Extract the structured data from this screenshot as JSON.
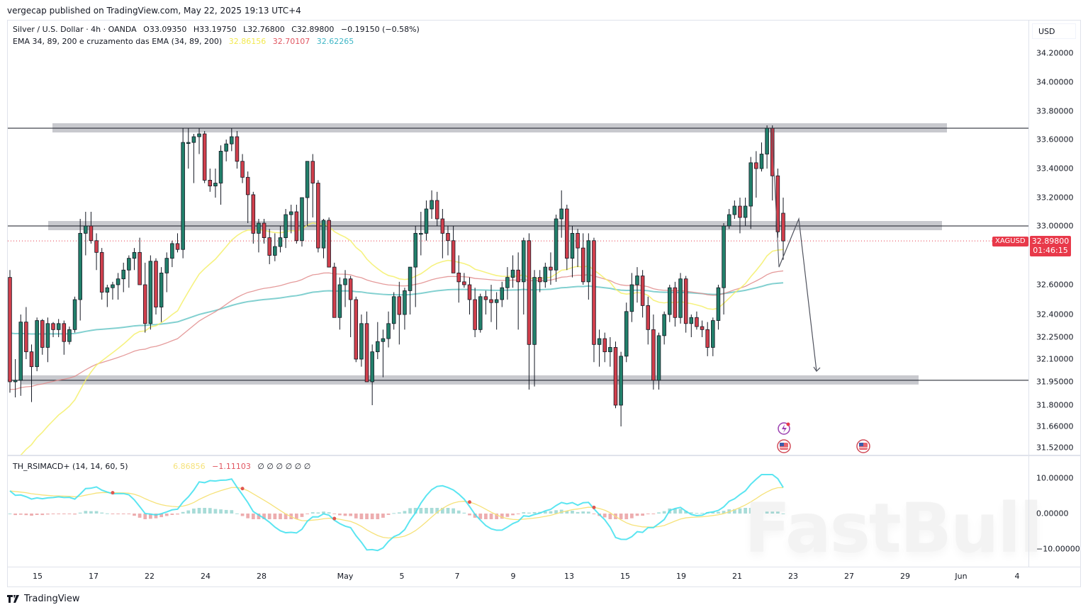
{
  "publisher": "vergecap published on TradingView.com, May 22, 2025 19:13 UTC+4",
  "header": {
    "symbol_line": {
      "name": "Silver / U.S. Dollar · 4h · OANDA",
      "open": "O33.09350",
      "high": "H33.19750",
      "low": "L32.76800",
      "close": "C32.89800",
      "change": "−0.19150 (−0.58%)"
    },
    "ema_line": {
      "name": "EMA 34, 89, 200 e cruzamento das EMA (34, 89, 200)",
      "ema34": "32.86156",
      "ema89": "32.70107",
      "ema200": "32.62265"
    }
  },
  "indicator": {
    "name": "TH_RSIMACD+ (14, 14, 60, 5)",
    "value1": "6.86856",
    "value2": "−1.11103",
    "empties": "∅ ∅ ∅ ∅ ∅ ∅",
    "axis_ticks": [
      "10.00000",
      "0.00000",
      "−10.00000"
    ]
  },
  "price_axis": {
    "currency": "USD",
    "ticks": [
      "34.20000",
      "34.00000",
      "33.80000",
      "33.60000",
      "33.40000",
      "33.20000",
      "33.00000",
      "32.60000",
      "32.40000",
      "32.25000",
      "32.10000",
      "31.95000",
      "31.80000",
      "31.66000",
      "31.52000"
    ],
    "last_price": "32.89800",
    "countdown": "01:46:15",
    "symbol_badge": "XAGUSD"
  },
  "time_axis": {
    "ticks": [
      "15",
      "17",
      "22",
      "24",
      "28",
      "May",
      "5",
      "7",
      "9",
      "13",
      "15",
      "19",
      "21",
      "23",
      "27",
      "29",
      "Jun",
      "4"
    ]
  },
  "footer": {
    "brand": "TradingView"
  },
  "watermark": "FastBull",
  "colors": {
    "up": "#22806b",
    "down": "#d13f4c",
    "ema34": "#f5f06a",
    "ema89": "#e08a8a",
    "ema200": "#6cc8c8",
    "band": "#c8c9ce",
    "badge": "#e8394a",
    "rsi_line": "#3ee0ee",
    "signal_line": "#f6e27a"
  },
  "chart_data": {
    "type": "candlestick",
    "title": "Silver / U.S. Dollar · 4h · OANDA",
    "xlabel": "",
    "ylabel": "USD",
    "ylim": [
      31.45,
      34.3
    ],
    "grid": false,
    "horizontal_levels": [
      {
        "label": "resistance",
        "price": 33.68
      },
      {
        "label": "mid",
        "price": 33.0
      },
      {
        "label": "support",
        "price": 31.96
      }
    ],
    "projection_path": [
      {
        "date": "May 22",
        "price": 32.72
      },
      {
        "date": "May 23",
        "price": 33.05
      },
      {
        "date": "May 26",
        "price": 32.02
      }
    ],
    "series": [
      {
        "name": "EMA 34",
        "last": 32.86156
      },
      {
        "name": "EMA 89",
        "last": 32.70107
      },
      {
        "name": "EMA 200",
        "last": 32.62265
      }
    ],
    "ohlc_approx": [
      [
        32.65,
        32.7,
        31.88,
        31.95
      ],
      [
        31.95,
        32.1,
        31.85,
        31.96
      ],
      [
        31.96,
        32.4,
        31.86,
        32.35
      ],
      [
        32.35,
        32.45,
        32.1,
        32.15
      ],
      [
        32.15,
        32.2,
        31.82,
        32.05
      ],
      [
        32.05,
        32.38,
        32.02,
        32.36
      ],
      [
        32.36,
        32.37,
        32.13,
        32.18
      ],
      [
        32.18,
        32.38,
        32.08,
        32.34
      ],
      [
        32.34,
        32.35,
        32.25,
        32.3
      ],
      [
        32.3,
        32.37,
        32.25,
        32.34
      ],
      [
        32.34,
        32.36,
        32.13,
        32.22
      ],
      [
        32.22,
        32.32,
        32.2,
        32.3
      ],
      [
        32.3,
        32.52,
        32.28,
        32.5
      ],
      [
        32.5,
        33.05,
        32.36,
        32.95
      ],
      [
        32.95,
        33.1,
        32.8,
        33.0
      ],
      [
        33.0,
        33.1,
        32.88,
        32.9
      ],
      [
        32.9,
        32.95,
        32.7,
        32.82
      ],
      [
        32.82,
        32.85,
        32.5,
        32.55
      ],
      [
        32.55,
        32.6,
        32.45,
        32.58
      ],
      [
        32.58,
        32.62,
        32.5,
        32.6
      ],
      [
        32.6,
        32.68,
        32.5,
        32.64
      ],
      [
        32.64,
        32.75,
        32.55,
        32.7
      ],
      [
        32.7,
        32.8,
        32.58,
        32.78
      ],
      [
        32.78,
        32.85,
        32.7,
        32.82
      ],
      [
        32.82,
        32.92,
        32.65,
        32.6
      ],
      [
        32.6,
        32.75,
        32.28,
        32.34
      ],
      [
        32.34,
        32.8,
        32.3,
        32.76
      ],
      [
        32.76,
        32.78,
        32.4,
        32.45
      ],
      [
        32.45,
        32.72,
        32.35,
        32.68
      ],
      [
        32.68,
        32.82,
        32.55,
        32.78
      ],
      [
        32.78,
        32.9,
        32.72,
        32.88
      ],
      [
        32.88,
        32.95,
        32.82,
        32.84
      ],
      [
        32.84,
        33.68,
        32.78,
        33.58
      ],
      [
        33.58,
        33.68,
        33.4,
        33.58
      ],
      [
        33.58,
        33.64,
        33.3,
        33.62
      ],
      [
        33.62,
        33.68,
        33.5,
        33.64
      ],
      [
        33.64,
        33.66,
        33.3,
        33.32
      ],
      [
        33.32,
        33.4,
        33.24,
        33.28
      ],
      [
        33.28,
        33.4,
        33.2,
        33.3
      ],
      [
        33.3,
        33.56,
        33.15,
        33.52
      ],
      [
        33.52,
        33.6,
        33.45,
        33.57
      ],
      [
        33.57,
        33.68,
        33.52,
        33.62
      ],
      [
        33.62,
        33.66,
        33.4,
        33.45
      ],
      [
        33.45,
        33.5,
        33.3,
        33.34
      ],
      [
        33.34,
        33.38,
        33.02,
        33.22
      ],
      [
        33.22,
        33.24,
        32.88,
        32.95
      ],
      [
        32.95,
        33.05,
        32.82,
        33.02
      ],
      [
        33.02,
        33.05,
        32.88,
        32.92
      ],
      [
        32.92,
        32.98,
        32.74,
        32.8
      ],
      [
        32.8,
        32.95,
        32.76,
        32.86
      ],
      [
        32.86,
        33.0,
        32.82,
        32.92
      ],
      [
        32.92,
        33.12,
        32.85,
        33.08
      ],
      [
        33.08,
        33.15,
        32.95,
        33.1
      ],
      [
        33.1,
        33.15,
        32.88,
        32.9
      ],
      [
        32.9,
        33.18,
        32.86,
        33.2
      ],
      [
        33.2,
        33.4,
        33.0,
        33.45
      ],
      [
        33.45,
        33.5,
        33.06,
        33.3
      ],
      [
        33.3,
        33.32,
        32.82,
        32.85
      ],
      [
        32.85,
        33.05,
        32.78,
        33.04
      ],
      [
        33.04,
        33.06,
        32.72,
        32.72
      ],
      [
        32.72,
        32.75,
        32.38,
        32.38
      ],
      [
        32.38,
        32.65,
        32.3,
        32.6
      ],
      [
        32.6,
        32.7,
        32.45,
        32.64
      ],
      [
        32.64,
        32.66,
        32.25,
        32.5
      ],
      [
        32.5,
        32.52,
        32.08,
        32.1
      ],
      [
        32.1,
        32.4,
        32.05,
        32.34
      ],
      [
        32.34,
        32.42,
        31.95,
        31.95
      ],
      [
        31.95,
        32.2,
        31.8,
        32.15
      ],
      [
        32.15,
        32.35,
        32.1,
        32.22
      ],
      [
        32.22,
        32.3,
        31.98,
        32.24
      ],
      [
        32.24,
        32.42,
        32.18,
        32.34
      ],
      [
        32.34,
        32.55,
        32.3,
        32.52
      ],
      [
        32.52,
        32.62,
        32.2,
        32.4
      ],
      [
        32.4,
        32.58,
        32.3,
        32.56
      ],
      [
        32.56,
        32.72,
        32.4,
        32.72
      ],
      [
        32.72,
        33.0,
        32.45,
        32.95
      ],
      [
        32.95,
        33.1,
        32.8,
        32.95
      ],
      [
        32.95,
        33.18,
        32.9,
        33.12
      ],
      [
        33.12,
        33.25,
        33.05,
        33.18
      ],
      [
        33.18,
        33.24,
        33.0,
        33.05
      ],
      [
        33.05,
        33.12,
        32.78,
        32.95
      ],
      [
        32.95,
        33.0,
        32.8,
        32.9
      ],
      [
        32.9,
        33.0,
        32.7,
        32.68
      ],
      [
        32.68,
        32.8,
        32.48,
        32.62
      ],
      [
        32.62,
        32.68,
        32.58,
        32.6
      ],
      [
        32.6,
        32.65,
        32.4,
        32.5
      ],
      [
        32.5,
        32.58,
        32.25,
        32.3
      ],
      [
        32.3,
        32.54,
        32.28,
        32.52
      ],
      [
        32.52,
        32.56,
        32.4,
        32.5
      ],
      [
        32.5,
        32.6,
        32.35,
        32.48
      ],
      [
        32.48,
        32.55,
        32.3,
        32.5
      ],
      [
        32.5,
        32.62,
        32.45,
        32.58
      ],
      [
        32.58,
        32.72,
        32.5,
        32.65
      ],
      [
        32.65,
        32.8,
        32.58,
        32.7
      ],
      [
        32.7,
        32.82,
        32.3,
        32.62
      ],
      [
        32.62,
        32.92,
        32.4,
        32.9
      ],
      [
        32.9,
        32.95,
        31.9,
        32.2
      ],
      [
        32.2,
        32.7,
        31.92,
        32.65
      ],
      [
        32.65,
        32.7,
        32.55,
        32.62
      ],
      [
        32.62,
        32.75,
        32.58,
        32.72
      ],
      [
        32.72,
        32.82,
        32.6,
        32.7
      ],
      [
        32.7,
        33.08,
        32.62,
        33.05
      ],
      [
        33.05,
        33.25,
        32.92,
        33.12
      ],
      [
        33.12,
        33.15,
        32.7,
        32.78
      ],
      [
        32.78,
        33.0,
        32.65,
        32.95
      ],
      [
        32.95,
        32.98,
        32.72,
        32.85
      ],
      [
        32.85,
        32.95,
        32.6,
        32.62
      ],
      [
        32.62,
        32.95,
        32.5,
        32.9
      ],
      [
        32.9,
        32.92,
        32.08,
        32.2
      ],
      [
        32.2,
        32.3,
        32.05,
        32.24
      ],
      [
        32.24,
        32.28,
        32.08,
        32.15
      ],
      [
        32.15,
        32.25,
        32.05,
        32.18
      ],
      [
        32.18,
        32.22,
        31.78,
        31.8
      ],
      [
        31.8,
        32.15,
        31.66,
        32.12
      ],
      [
        32.12,
        32.48,
        32.08,
        32.42
      ],
      [
        32.42,
        32.68,
        32.35,
        32.6
      ],
      [
        32.6,
        32.72,
        32.48,
        32.66
      ],
      [
        32.66,
        32.7,
        32.38,
        32.46
      ],
      [
        32.46,
        32.52,
        32.2,
        32.3
      ],
      [
        32.3,
        32.4,
        31.9,
        31.96
      ],
      [
        31.96,
        32.28,
        31.9,
        32.26
      ],
      [
        32.26,
        32.42,
        32.2,
        32.4
      ],
      [
        32.4,
        32.6,
        32.35,
        32.58
      ],
      [
        32.58,
        32.62,
        32.32,
        32.38
      ],
      [
        32.38,
        32.68,
        32.34,
        32.64
      ],
      [
        32.64,
        32.66,
        32.28,
        32.34
      ],
      [
        32.34,
        32.4,
        32.25,
        32.38
      ],
      [
        32.38,
        32.42,
        32.3,
        32.32
      ],
      [
        32.32,
        32.36,
        32.25,
        32.3
      ],
      [
        32.3,
        32.35,
        32.12,
        32.18
      ],
      [
        32.18,
        32.38,
        32.12,
        32.36
      ],
      [
        32.36,
        32.6,
        32.3,
        32.58
      ],
      [
        32.58,
        33.02,
        32.4,
        33.0
      ],
      [
        33.0,
        33.12,
        32.98,
        33.08
      ],
      [
        33.08,
        33.18,
        33.05,
        33.14
      ],
      [
        33.14,
        33.2,
        32.95,
        33.06
      ],
      [
        33.06,
        33.2,
        33.0,
        33.14
      ],
      [
        33.14,
        33.48,
        32.98,
        33.44
      ],
      [
        33.44,
        33.52,
        33.2,
        33.4
      ],
      [
        33.4,
        33.58,
        33.38,
        33.5
      ],
      [
        33.5,
        33.7,
        33.4,
        33.68
      ],
      [
        33.68,
        33.7,
        33.18,
        33.35
      ],
      [
        33.35,
        33.4,
        32.92,
        32.96
      ],
      [
        33.09,
        33.2,
        32.77,
        32.898
      ]
    ]
  }
}
